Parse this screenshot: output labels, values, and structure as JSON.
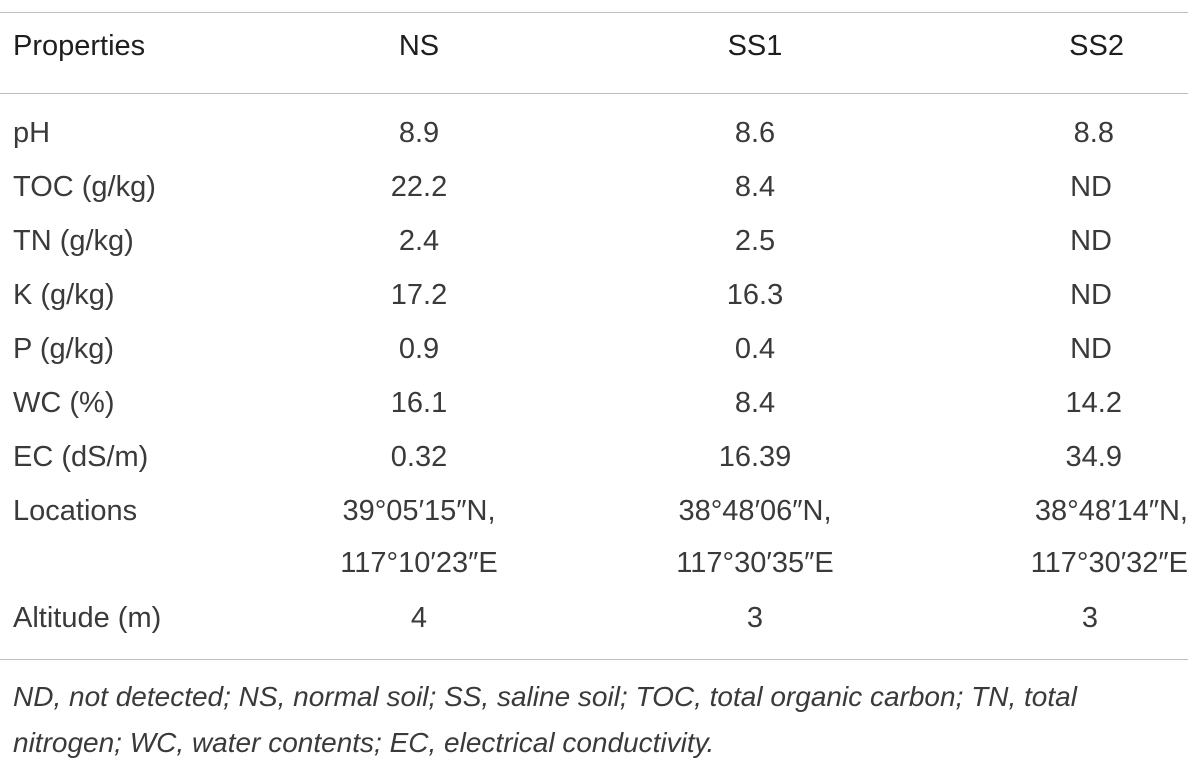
{
  "table": {
    "headers": [
      "Properties",
      "NS",
      "SS1",
      "SS2"
    ],
    "rows": [
      {
        "property": "pH",
        "ns": "8.9",
        "ss1": "8.6",
        "ss2": "8.8"
      },
      {
        "property": "TOC (g/kg)",
        "ns": "22.2",
        "ss1": "8.4",
        "ss2": "ND"
      },
      {
        "property": "TN (g/kg)",
        "ns": "2.4",
        "ss1": "2.5",
        "ss2": "ND"
      },
      {
        "property": "K (g/kg)",
        "ns": "17.2",
        "ss1": "16.3",
        "ss2": "ND"
      },
      {
        "property": "P (g/kg)",
        "ns": "0.9",
        "ss1": "0.4",
        "ss2": "ND"
      },
      {
        "property": "WC (%)",
        "ns": "16.1",
        "ss1": "8.4",
        "ss2": "14.2"
      },
      {
        "property": "EC (dS/m)",
        "ns": "0.32",
        "ss1": "16.39",
        "ss2": "34.9"
      }
    ],
    "locations": {
      "label": "Locations",
      "ns": [
        "39°05′15″N,",
        "117°10′23″E"
      ],
      "ss1": [
        "38°48′06″N,",
        "117°30′35″E"
      ],
      "ss2": [
        "38°48′14″N,",
        "117°30′32″E"
      ]
    },
    "altitude": {
      "property": "Altitude (m)",
      "ns": "4",
      "ss1": "3",
      "ss2": "3"
    }
  },
  "footnote": "ND, not detected; NS, normal soil; SS, saline soil; TOC, total organic carbon; TN, total nitrogen; WC, water contents; EC, electrical conductivity."
}
